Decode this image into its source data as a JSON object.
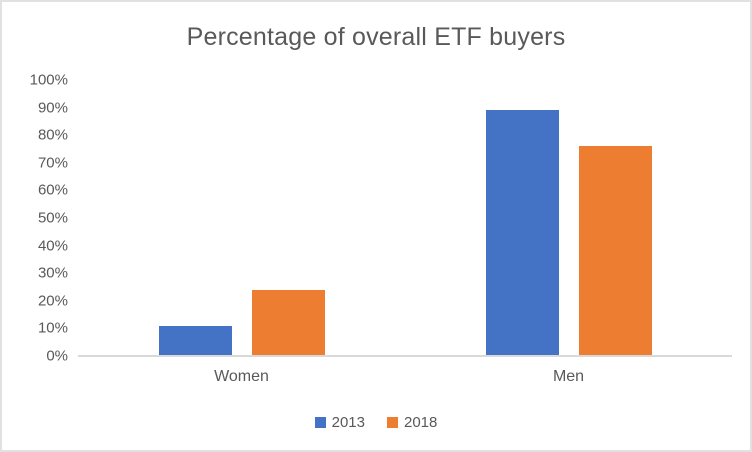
{
  "window": {
    "background": "#ffffff",
    "border_color": "#e1e1e1"
  },
  "chart_data": {
    "type": "bar",
    "title": "Percentage of overall ETF buyers",
    "categories": [
      "Women",
      "Men"
    ],
    "series": [
      {
        "name": "2013",
        "color": "#4472C4",
        "values": [
          11,
          89
        ]
      },
      {
        "name": "2018",
        "color": "#ED7D31",
        "values": [
          24,
          76
        ]
      }
    ],
    "xlabel": "",
    "ylabel": "",
    "ylim": [
      0,
      100
    ],
    "ytick_step": 10,
    "ytick_labels": [
      "0%",
      "10%",
      "20%",
      "30%",
      "40%",
      "50%",
      "60%",
      "70%",
      "80%",
      "90%",
      "100%"
    ],
    "grid": false,
    "legend_position": "bottom",
    "axis_line_color": "#d9d9d9",
    "text_color": "#595959"
  }
}
